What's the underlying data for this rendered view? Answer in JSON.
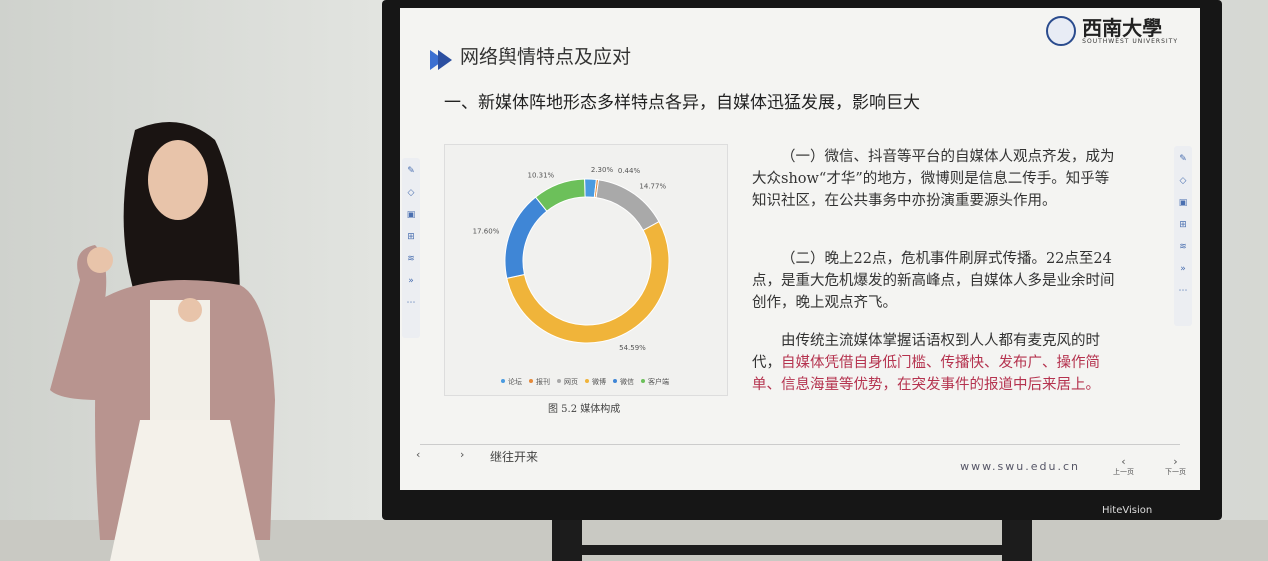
{
  "slide": {
    "title": "网络舆情特点及应对",
    "logo": {
      "name": "西南大學",
      "sub": "SOUTHWEST UNIVERSITY"
    },
    "heading": "一、新媒体阵地形态多样特点各异，自媒体迅猛发展，影响巨大",
    "paragraphs": [
      {
        "text": "（一）微信、抖音等平台的自媒体人观点齐发，成为大众show“才华”的地方，微博则是信息二传手。知乎等知识社区，在公共事务中亦扮演重要源头作用。"
      },
      {
        "text": "（二）晚上22点，危机事件刷屏式传播。22点至24点，是重大危机爆发的新高峰点，自媒体人多是业余时间创作，晚上观点齐飞。"
      },
      {
        "text": "由传统主流媒体掌握话语权到人人都有麦克风的时代，",
        "highlight": "自媒体凭借自身低门槛、传播快、发布广、操作简单、信息海量等优势，在突发事件的报道中后来居上。"
      }
    ],
    "footer_text": "继往开来",
    "url": "www.swu.edu.cn",
    "prev": "上一页",
    "next": "下一页"
  },
  "chart_data": {
    "type": "pie",
    "donut": true,
    "title": "",
    "caption": "图 5.2  媒体构成",
    "legend_position": "bottom",
    "categories": [
      "论坛",
      "报刊",
      "网页",
      "微博",
      "微信",
      "客户端"
    ],
    "values": [
      2.3,
      0.44,
      14.77,
      54.59,
      17.6,
      10.31
    ],
    "labels": [
      "2.30%",
      "0.44%",
      "14.77%",
      "54.59%",
      "17.60%",
      "10.31%"
    ],
    "colors": [
      "#4a9be0",
      "#e58a3a",
      "#a9a9a9",
      "#f0b43a",
      "#3f86d6",
      "#6cc05a"
    ]
  },
  "monitor_brand": "HiteVision"
}
